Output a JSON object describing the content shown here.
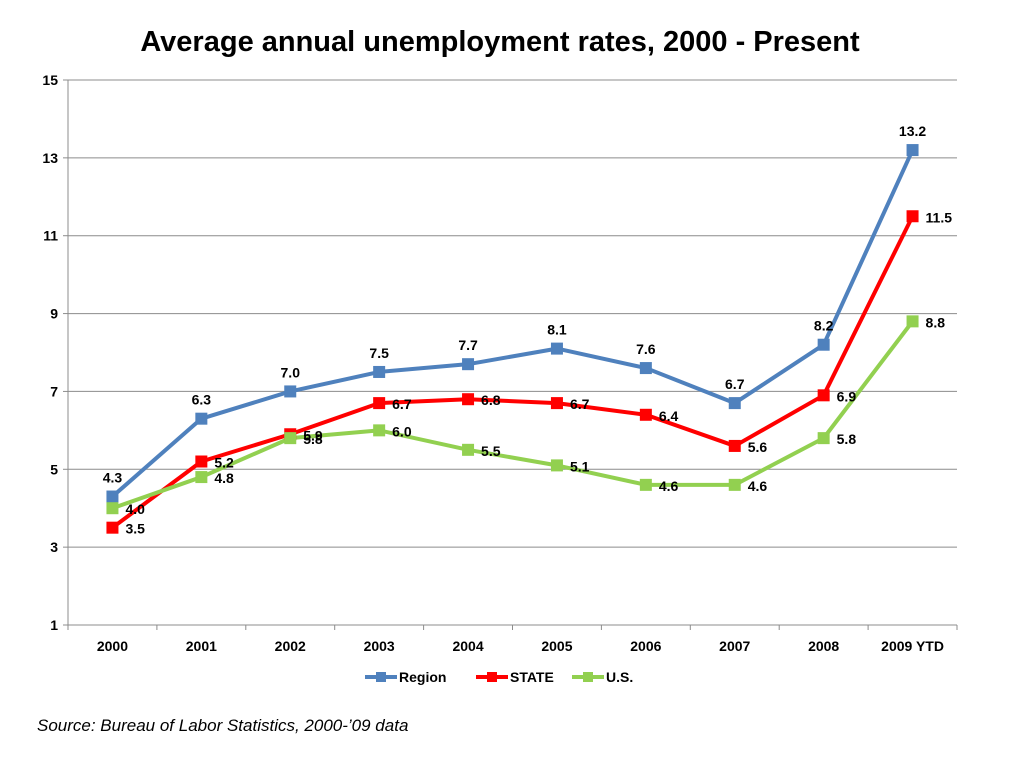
{
  "chart_data": {
    "type": "line",
    "title": "Average annual unemployment rates, 2000 - Present",
    "categories": [
      "2000",
      "2001",
      "2002",
      "2003",
      "2004",
      "2005",
      "2006",
      "2007",
      "2008",
      "2009 YTD"
    ],
    "yticks": [
      "1",
      "3",
      "5",
      "7",
      "9",
      "11",
      "13",
      "15"
    ],
    "ylim": [
      1,
      15
    ],
    "grid": true,
    "legend_position": "bottom",
    "series": [
      {
        "name": "Region",
        "color": "#4f81bd",
        "values": [
          4.3,
          6.3,
          7.0,
          7.5,
          7.7,
          8.1,
          7.6,
          6.7,
          8.2,
          13.2
        ],
        "labels": [
          "4.3",
          "6.3",
          "7.0",
          "7.5",
          "7.7",
          "8.1",
          "7.6",
          "6.7",
          "8.2",
          "13.2"
        ]
      },
      {
        "name": "STATE",
        "color": "#ff0000",
        "values": [
          3.5,
          5.2,
          5.9,
          6.7,
          6.8,
          6.7,
          6.4,
          5.6,
          6.9,
          11.5
        ],
        "labels": [
          "3.5",
          "5.2",
          "5.9",
          "6.7",
          "6.8",
          "6.7",
          "6.4",
          "5.6",
          "6.9",
          "11.5"
        ]
      },
      {
        "name": "U.S.",
        "color": "#92d050",
        "values": [
          4.0,
          4.8,
          5.8,
          6.0,
          5.5,
          5.1,
          4.6,
          4.6,
          5.8,
          8.8
        ],
        "labels": [
          "4.0",
          "4.8",
          "5.8",
          "6.0",
          "5.5",
          "5.1",
          "4.6",
          "4.6",
          "5.8",
          "8.8"
        ]
      }
    ],
    "source": "Source: Bureau of Labor Statistics, 2000-’09 data"
  }
}
